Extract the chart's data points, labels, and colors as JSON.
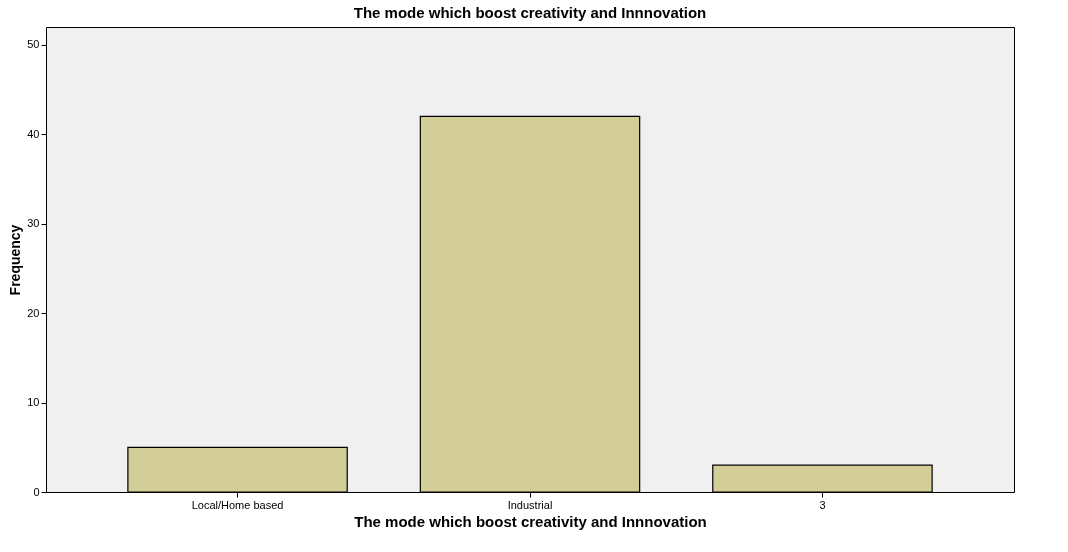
{
  "chart_data": {
    "type": "bar",
    "title": "The mode which boost creativity and Innnovation",
    "xlabel": "The mode which boost creativity and Innnovation",
    "ylabel": "Frequency",
    "categories": [
      "Local/Home based",
      "Industrial",
      "3"
    ],
    "values": [
      5,
      42,
      3
    ],
    "color": "#d3ce98",
    "ylim": [
      0,
      52
    ],
    "yticks": [
      0,
      10,
      20,
      30,
      40,
      50
    ],
    "grid": false
  }
}
